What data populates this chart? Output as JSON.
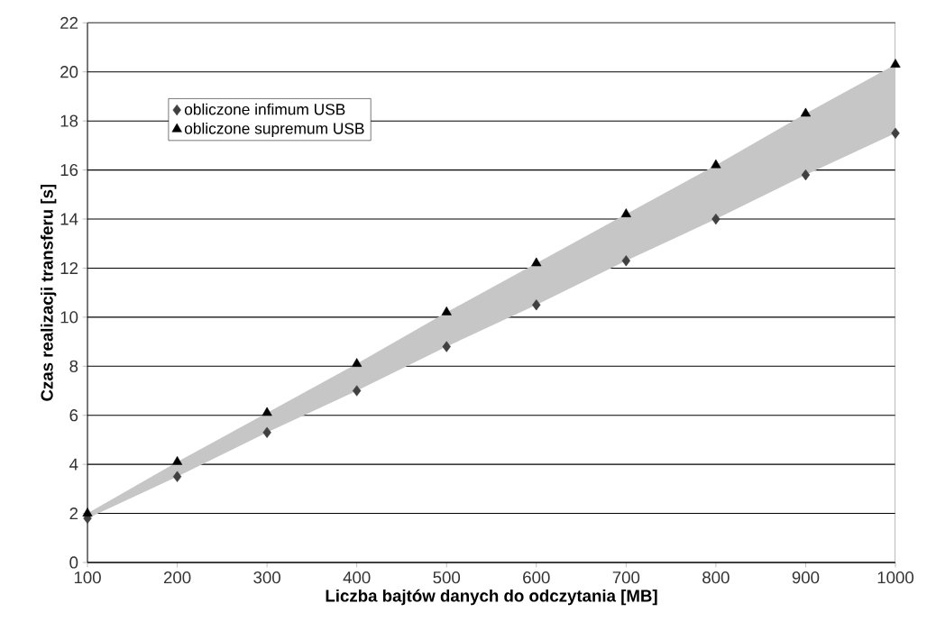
{
  "chart_data": {
    "type": "scatter",
    "xlabel": "Liczba bajtów danych do odczytania [MB]",
    "ylabel": "Czas realizacji transferu [s]",
    "x": [
      100,
      200,
      300,
      400,
      500,
      600,
      700,
      800,
      900,
      1000
    ],
    "series": [
      {
        "name": "obliczone infimum USB",
        "color": "#404040",
        "marker": "diamond",
        "values": [
          1.8,
          3.5,
          5.3,
          7.0,
          8.8,
          10.5,
          12.3,
          14.0,
          15.8,
          17.5
        ],
        "lower": [
          1.8,
          3.5,
          5.3,
          7.0,
          8.8,
          10.5,
          12.3,
          14.0,
          15.8,
          17.5
        ],
        "upper": [
          2.0,
          4.1,
          6.1,
          8.1,
          10.2,
          12.2,
          14.2,
          16.2,
          18.3,
          20.3
        ]
      },
      {
        "name": "obliczone supremum USB",
        "color": "#000000",
        "marker": "triangle",
        "values": [
          2.0,
          4.1,
          6.1,
          8.1,
          10.2,
          12.2,
          14.2,
          16.2,
          18.3,
          20.3
        ]
      }
    ],
    "xlim": [
      100,
      1000
    ],
    "xticks": [
      100,
      200,
      300,
      400,
      500,
      600,
      700,
      800,
      900,
      1000
    ],
    "ylim": [
      0,
      22
    ],
    "yticks": [
      0,
      2,
      4,
      6,
      8,
      10,
      12,
      14,
      16,
      18,
      20,
      22
    ],
    "grid": "y",
    "legend": "top left"
  }
}
